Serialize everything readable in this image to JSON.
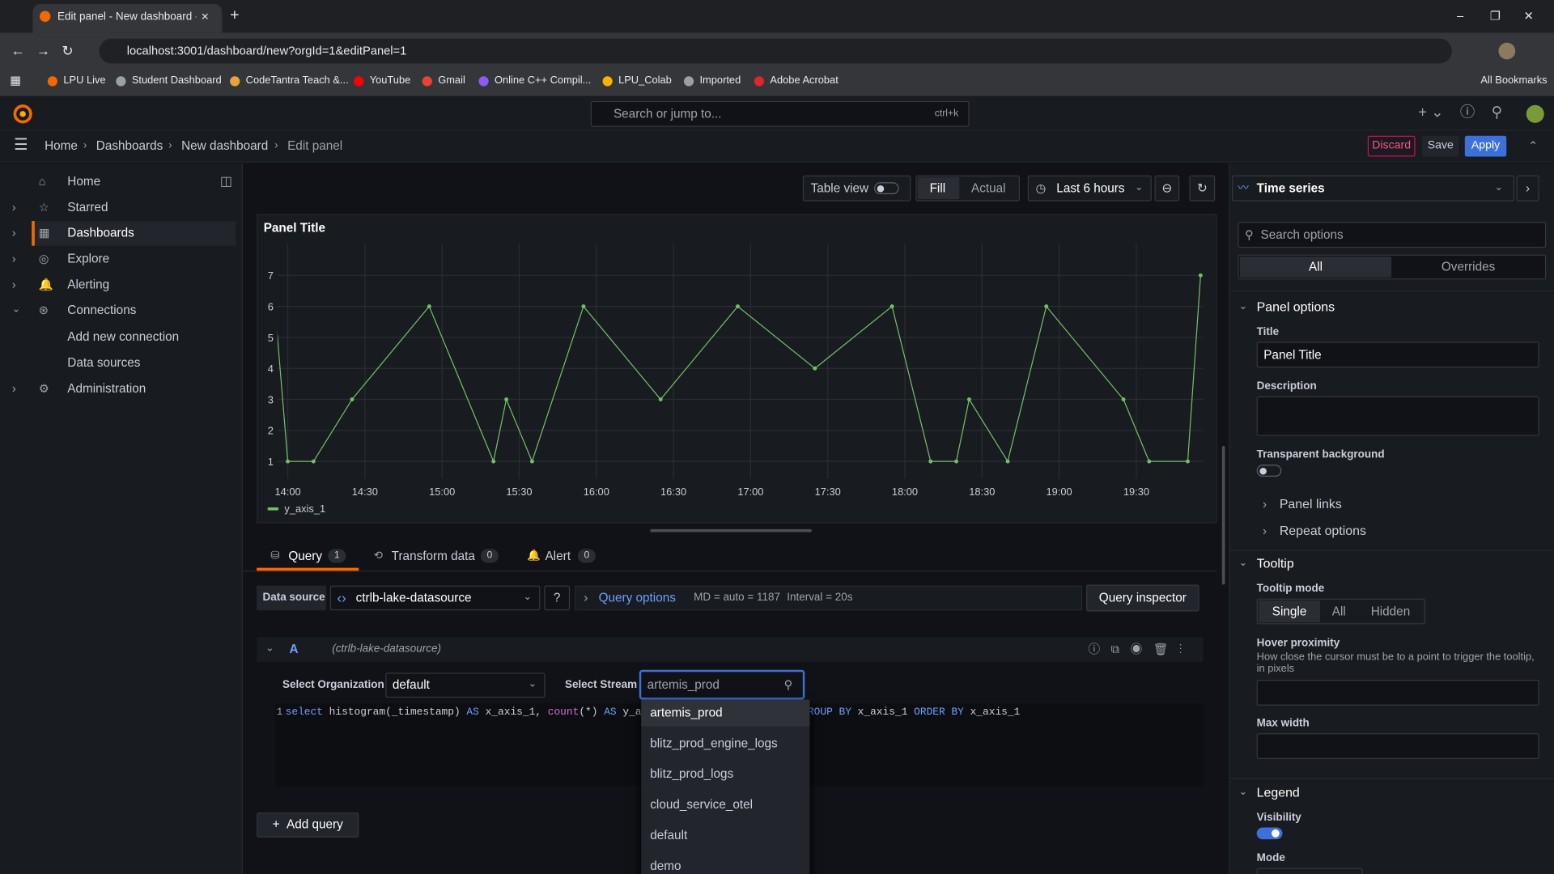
{
  "browser": {
    "tab_title": "Edit panel - New dashboard - D",
    "url": "localhost:3001/dashboard/new?orgId=1&editPanel=1",
    "bookmarks": [
      "LPU Live",
      "Student Dashboard",
      "CodeTantra Teach &...",
      "YouTube",
      "Gmail",
      "Online C++ Compil...",
      "LPU_Colab",
      "Imported",
      "Adobe Acrobat"
    ],
    "all_bookmarks": "All Bookmarks"
  },
  "topbar": {
    "search": "Search or jump to...",
    "shortcut": "ctrl+k"
  },
  "breadcrumbs": [
    "Home",
    "Dashboards",
    "New dashboard",
    "Edit panel"
  ],
  "actions": {
    "discard": "Discard",
    "save": "Save",
    "apply": "Apply"
  },
  "nav": {
    "items": [
      "Home",
      "Starred",
      "Dashboards",
      "Explore",
      "Alerting",
      "Connections"
    ],
    "sub_items": [
      "Add new connection",
      "Data sources"
    ],
    "admin": "Administration"
  },
  "toolbar": {
    "table_view": "Table view",
    "fill": "Fill",
    "actual": "Actual",
    "time_range": "Last 6 hours"
  },
  "chart_data": {
    "type": "line",
    "title": "Panel Title",
    "x": [
      "13:55",
      "14:00",
      "14:10",
      "14:25",
      "14:55",
      "15:20",
      "15:25",
      "15:35",
      "15:55",
      "16:25",
      "16:55",
      "17:25",
      "17:55",
      "18:10",
      "18:20",
      "18:25",
      "18:40",
      "18:55",
      "19:25",
      "19:35",
      "19:50",
      "19:55"
    ],
    "series": [
      {
        "name": "y_axis_1",
        "color": "#73bf69",
        "values": [
          6,
          1,
          1,
          3,
          6,
          1,
          3,
          1,
          6,
          3,
          6,
          4,
          6,
          1,
          1,
          3,
          1,
          6,
          3,
          1,
          1,
          7
        ]
      }
    ],
    "xlim": [
      "13:56",
      "19:56"
    ],
    "xticks": [
      "14:00",
      "14:30",
      "15:00",
      "15:30",
      "16:00",
      "16:30",
      "17:00",
      "17:30",
      "18:00",
      "18:30",
      "19:00",
      "19:30"
    ],
    "ylim": [
      0.7,
      7.7
    ],
    "yticks": [
      1,
      2,
      3,
      4,
      5,
      6,
      7
    ],
    "grid": true
  },
  "query": {
    "tabs": [
      {
        "label": "Query",
        "count": 1
      },
      {
        "label": "Transform data",
        "count": 0
      },
      {
        "label": "Alert",
        "count": 0
      }
    ],
    "data_source_label": "Data source",
    "data_source": "ctrlb-lake-datasource",
    "query_options": "Query options",
    "md": "MD = auto = 1187",
    "interval": "Interval = 20s",
    "inspector": "Query inspector",
    "ref": "A",
    "ref_source": "(ctrlb-lake-datasource)",
    "org_label": "Select Organization",
    "org_value": "default",
    "stream_label": "Select Stream",
    "stream_value": "artemis_prod",
    "line_number": "1",
    "sql_a": [
      {
        "text": "select",
        "color": "#6e9fff"
      },
      {
        "text": " histogram(_timestamp) ",
        "color": "#ccccdc"
      },
      {
        "text": "AS",
        "color": "#6e9fff"
      },
      {
        "text": " x_axis_1, ",
        "color": "#ccccdc"
      },
      {
        "text": "count",
        "color": "#d36ad6"
      },
      {
        "text": "(*) ",
        "color": "#ccccdc"
      },
      {
        "text": "AS",
        "color": "#6e9fff"
      },
      {
        "text": " y_a",
        "color": "#ccccdc"
      }
    ],
    "sql_b": [
      {
        "text": "ROUP BY",
        "color": "#6e9fff"
      },
      {
        "text": " x_axis_1 ",
        "color": "#ccccdc"
      },
      {
        "text": "ORDER BY",
        "color": "#6e9fff"
      },
      {
        "text": " x_axis_1",
        "color": "#ccccdc"
      }
    ],
    "stream_options": [
      "artemis_prod",
      "blitz_prod_engine_logs",
      "blitz_prod_logs",
      "cloud_service_otel",
      "default",
      "demo"
    ],
    "add_query": "Add query"
  },
  "options": {
    "visualization": "Time series",
    "search": "Search options",
    "tabs": [
      "All",
      "Overrides"
    ],
    "panel_options": "Panel options",
    "title_label": "Title",
    "title_value": "Panel Title",
    "description_label": "Description",
    "transparent_label": "Transparent background",
    "panel_links": "Panel links",
    "repeat_options": "Repeat options",
    "tooltip": "Tooltip",
    "tooltip_mode": "Tooltip mode",
    "modes": [
      "Single",
      "All",
      "Hidden"
    ],
    "hover_proximity": "Hover proximity",
    "hover_desc": "How close the cursor must be to a point to trigger the tooltip, in pixels",
    "max_width": "Max width",
    "legend": "Legend",
    "visibility": "Visibility",
    "mode": "Mode"
  }
}
